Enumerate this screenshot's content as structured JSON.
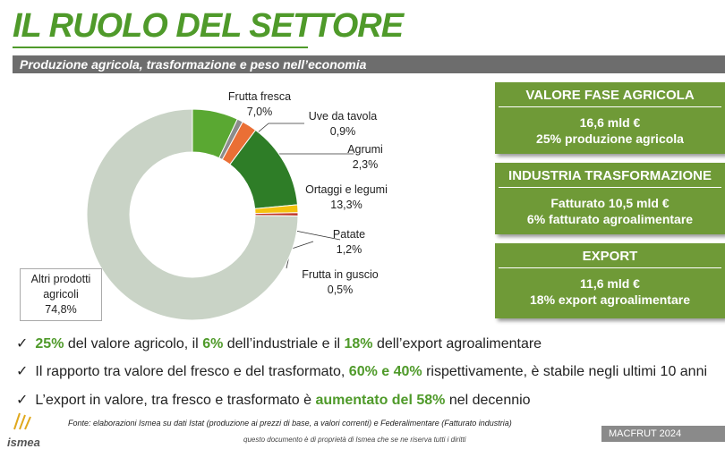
{
  "title": "IL RUOLO DEL SETTORE",
  "subtitle": "Produzione agricola, trasformazione e peso nell’economia",
  "chart_data": {
    "type": "donut",
    "categories": [
      "Frutta fresca",
      "Uve da tavola",
      "Agrumi",
      "Ortaggi e legumi",
      "Patate",
      "Frutta in guscio",
      "Altri prodotti agricoli"
    ],
    "values": [
      7.0,
      0.9,
      2.3,
      13.3,
      1.2,
      0.5,
      74.8
    ],
    "value_labels": [
      "7,0%",
      "0,9%",
      "2,3%",
      "13,3%",
      "1,2%",
      "0,5%",
      "74,8%"
    ],
    "colors": [
      "#5aa832",
      "#8c8c8c",
      "#ea6f35",
      "#2e7d27",
      "#f4c20d",
      "#c0392b",
      "#c9d3c6"
    ]
  },
  "boxes": [
    {
      "title": "VALORE FASE AGRICOLA",
      "lines": [
        "16,6 mld €",
        "25% produzione agricola"
      ]
    },
    {
      "title": "INDUSTRIA TRASFORMAZIONE",
      "lines": [
        "Fatturato 10,5 mld €",
        "6% fatturato agroalimentare"
      ]
    },
    {
      "title": "EXPORT",
      "lines": [
        "11,6 mld €",
        "18% export agroalimentare"
      ]
    }
  ],
  "bullets": [
    [
      "25%",
      " del valore agricolo, il ",
      "6%",
      " dell’industriale e il ",
      "18%",
      " dell’export agroalimentare"
    ],
    [
      "Il rapporto tra valore del fresco e del trasformato, ",
      "60% e 40%",
      " rispettivamente, è stabile negli ultimi 10 anni"
    ],
    [
      "L’export in valore, tra fresco e trasformato è ",
      "aumentato del 58%",
      " nel decennio"
    ]
  ],
  "source": "Fonte: elaborazioni Ismea su dati Istat (produzione ai prezzi di base, a valori  correnti) e Federalimentare (Fatturato industria)",
  "ownership": "questo documento è di proprietà di Ismea che se ne riserva tutti i diritti",
  "event": "MACFRUT 2024",
  "logo": "ismea"
}
